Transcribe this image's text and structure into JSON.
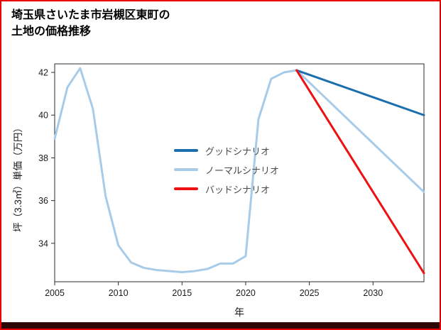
{
  "title": {
    "line1": "埼玉県さいたま市岩槻区東町の",
    "line2": "土地の価格推移"
  },
  "page": {
    "border_color": "#e80000",
    "bottom_bar_color": "#2d0606"
  },
  "chart_data": {
    "type": "line",
    "title": "埼玉県さいたま市岩槻区東町の土地の価格推移",
    "xlabel": "年",
    "ylabel": "坪（3.3㎡）単価（万円）",
    "xlim": [
      2005,
      2034
    ],
    "ylim": [
      32.2,
      42.4
    ],
    "x_ticks": [
      2005,
      2010,
      2015,
      2020,
      2025,
      2030
    ],
    "y_ticks": [
      34,
      36,
      38,
      40,
      42
    ],
    "grid": false,
    "legend_position": "inside-center-left",
    "series": [
      {
        "name": "グッドシナリオ",
        "color": "#1c6fad",
        "x": [
          2024,
          2034
        ],
        "values": [
          42.1,
          40.0
        ]
      },
      {
        "name": "ノーマルシナリオ",
        "color": "#a8cbe8",
        "x": [
          2005,
          2006,
          2007,
          2008,
          2009,
          2010,
          2011,
          2012,
          2013,
          2014,
          2015,
          2016,
          2017,
          2018,
          2019,
          2020,
          2021,
          2022,
          2023,
          2024,
          2034
        ],
        "values": [
          38.9,
          41.3,
          42.2,
          40.3,
          36.2,
          33.9,
          33.1,
          32.85,
          32.75,
          32.7,
          32.65,
          32.7,
          32.8,
          33.05,
          33.05,
          33.4,
          39.8,
          41.7,
          42.0,
          42.1,
          36.4
        ]
      },
      {
        "name": "バッドシナリオ",
        "color": "#ee1111",
        "x": [
          2024,
          2034
        ],
        "values": [
          42.1,
          32.6
        ]
      }
    ]
  }
}
